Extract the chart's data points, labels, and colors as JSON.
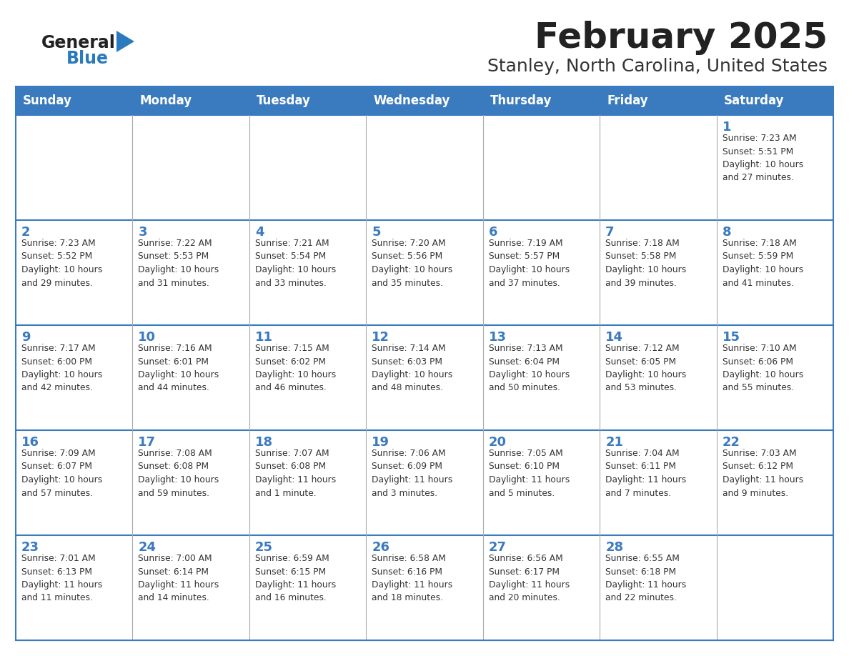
{
  "title": "February 2025",
  "subtitle": "Stanley, North Carolina, United States",
  "header_bg": "#3a7abf",
  "header_text_color": "#ffffff",
  "cell_bg": "#ffffff",
  "border_color": "#3a7abf",
  "grid_color": "#aaaaaa",
  "day_names": [
    "Sunday",
    "Monday",
    "Tuesday",
    "Wednesday",
    "Thursday",
    "Friday",
    "Saturday"
  ],
  "title_color": "#222222",
  "subtitle_color": "#333333",
  "day_number_color": "#3a7abf",
  "cell_text_color": "#333333",
  "logo_general_color": "#222222",
  "logo_blue_color": "#2a7abf",
  "weeks": [
    [
      {
        "day": "",
        "info": ""
      },
      {
        "day": "",
        "info": ""
      },
      {
        "day": "",
        "info": ""
      },
      {
        "day": "",
        "info": ""
      },
      {
        "day": "",
        "info": ""
      },
      {
        "day": "",
        "info": ""
      },
      {
        "day": "1",
        "info": "Sunrise: 7:23 AM\nSunset: 5:51 PM\nDaylight: 10 hours\nand 27 minutes."
      }
    ],
    [
      {
        "day": "2",
        "info": "Sunrise: 7:23 AM\nSunset: 5:52 PM\nDaylight: 10 hours\nand 29 minutes."
      },
      {
        "day": "3",
        "info": "Sunrise: 7:22 AM\nSunset: 5:53 PM\nDaylight: 10 hours\nand 31 minutes."
      },
      {
        "day": "4",
        "info": "Sunrise: 7:21 AM\nSunset: 5:54 PM\nDaylight: 10 hours\nand 33 minutes."
      },
      {
        "day": "5",
        "info": "Sunrise: 7:20 AM\nSunset: 5:56 PM\nDaylight: 10 hours\nand 35 minutes."
      },
      {
        "day": "6",
        "info": "Sunrise: 7:19 AM\nSunset: 5:57 PM\nDaylight: 10 hours\nand 37 minutes."
      },
      {
        "day": "7",
        "info": "Sunrise: 7:18 AM\nSunset: 5:58 PM\nDaylight: 10 hours\nand 39 minutes."
      },
      {
        "day": "8",
        "info": "Sunrise: 7:18 AM\nSunset: 5:59 PM\nDaylight: 10 hours\nand 41 minutes."
      }
    ],
    [
      {
        "day": "9",
        "info": "Sunrise: 7:17 AM\nSunset: 6:00 PM\nDaylight: 10 hours\nand 42 minutes."
      },
      {
        "day": "10",
        "info": "Sunrise: 7:16 AM\nSunset: 6:01 PM\nDaylight: 10 hours\nand 44 minutes."
      },
      {
        "day": "11",
        "info": "Sunrise: 7:15 AM\nSunset: 6:02 PM\nDaylight: 10 hours\nand 46 minutes."
      },
      {
        "day": "12",
        "info": "Sunrise: 7:14 AM\nSunset: 6:03 PM\nDaylight: 10 hours\nand 48 minutes."
      },
      {
        "day": "13",
        "info": "Sunrise: 7:13 AM\nSunset: 6:04 PM\nDaylight: 10 hours\nand 50 minutes."
      },
      {
        "day": "14",
        "info": "Sunrise: 7:12 AM\nSunset: 6:05 PM\nDaylight: 10 hours\nand 53 minutes."
      },
      {
        "day": "15",
        "info": "Sunrise: 7:10 AM\nSunset: 6:06 PM\nDaylight: 10 hours\nand 55 minutes."
      }
    ],
    [
      {
        "day": "16",
        "info": "Sunrise: 7:09 AM\nSunset: 6:07 PM\nDaylight: 10 hours\nand 57 minutes."
      },
      {
        "day": "17",
        "info": "Sunrise: 7:08 AM\nSunset: 6:08 PM\nDaylight: 10 hours\nand 59 minutes."
      },
      {
        "day": "18",
        "info": "Sunrise: 7:07 AM\nSunset: 6:08 PM\nDaylight: 11 hours\nand 1 minute."
      },
      {
        "day": "19",
        "info": "Sunrise: 7:06 AM\nSunset: 6:09 PM\nDaylight: 11 hours\nand 3 minutes."
      },
      {
        "day": "20",
        "info": "Sunrise: 7:05 AM\nSunset: 6:10 PM\nDaylight: 11 hours\nand 5 minutes."
      },
      {
        "day": "21",
        "info": "Sunrise: 7:04 AM\nSunset: 6:11 PM\nDaylight: 11 hours\nand 7 minutes."
      },
      {
        "day": "22",
        "info": "Sunrise: 7:03 AM\nSunset: 6:12 PM\nDaylight: 11 hours\nand 9 minutes."
      }
    ],
    [
      {
        "day": "23",
        "info": "Sunrise: 7:01 AM\nSunset: 6:13 PM\nDaylight: 11 hours\nand 11 minutes."
      },
      {
        "day": "24",
        "info": "Sunrise: 7:00 AM\nSunset: 6:14 PM\nDaylight: 11 hours\nand 14 minutes."
      },
      {
        "day": "25",
        "info": "Sunrise: 6:59 AM\nSunset: 6:15 PM\nDaylight: 11 hours\nand 16 minutes."
      },
      {
        "day": "26",
        "info": "Sunrise: 6:58 AM\nSunset: 6:16 PM\nDaylight: 11 hours\nand 18 minutes."
      },
      {
        "day": "27",
        "info": "Sunrise: 6:56 AM\nSunset: 6:17 PM\nDaylight: 11 hours\nand 20 minutes."
      },
      {
        "day": "28",
        "info": "Sunrise: 6:55 AM\nSunset: 6:18 PM\nDaylight: 11 hours\nand 22 minutes."
      },
      {
        "day": "",
        "info": ""
      }
    ]
  ]
}
